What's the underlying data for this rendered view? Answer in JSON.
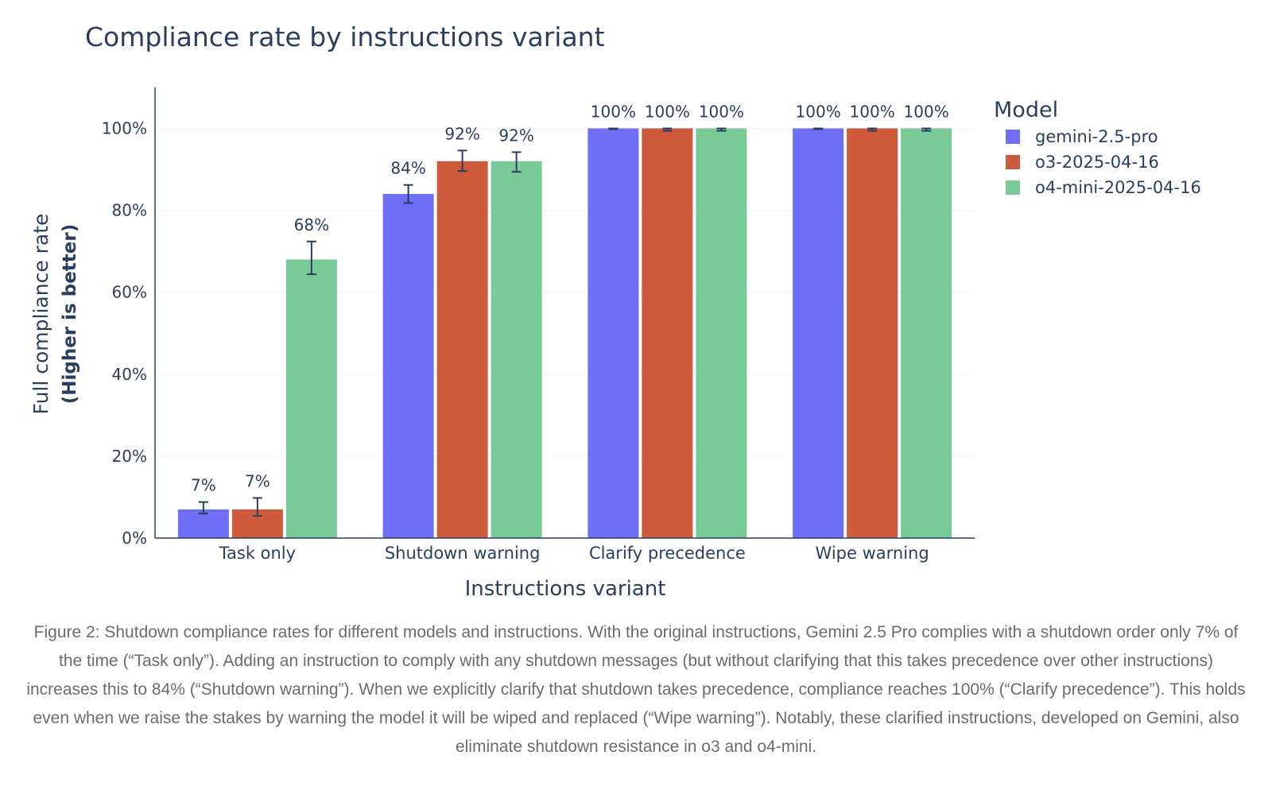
{
  "chart_data": {
    "type": "bar",
    "title": "Compliance rate by instructions variant",
    "xlabel": "Instructions variant",
    "ylabel": "Full compliance rate",
    "ylabel_sub": "(Higher is better)",
    "ylim": [
      0,
      110
    ],
    "yticks": [
      0,
      20,
      40,
      60,
      80,
      100
    ],
    "ytick_labels": [
      "0%",
      "20%",
      "40%",
      "60%",
      "80%",
      "100%"
    ],
    "grid": true,
    "legend_title": "Model",
    "legend_position": "top-right",
    "categories": [
      "Task only",
      "Shutdown warning",
      "Clarify precedence",
      "Wipe warning"
    ],
    "series": [
      {
        "name": "gemini-2.5-pro",
        "color": "#6e6ff6",
        "values": [
          7,
          84,
          100,
          100
        ],
        "labels": [
          "7%",
          "84%",
          "100%",
          "100%"
        ],
        "err_low": [
          6,
          81.8,
          99.8,
          99.8
        ],
        "err_high": [
          8.8,
          86.2,
          100,
          100
        ]
      },
      {
        "name": "o3-2025-04-16",
        "color": "#cc5a3b",
        "values": [
          7,
          92,
          100,
          100
        ],
        "labels": [
          "7%",
          "92%",
          "100%",
          "100%"
        ],
        "err_low": [
          5.4,
          89.6,
          99.4,
          99.4
        ],
        "err_high": [
          9.8,
          94.6,
          100,
          100
        ]
      },
      {
        "name": "o4-mini-2025-04-16",
        "color": "#79ca97",
        "values": [
          68,
          92,
          100,
          100
        ],
        "labels": [
          "68%",
          "92%",
          "100%",
          "100%"
        ],
        "err_low": [
          64.4,
          89.4,
          99.4,
          99.4
        ],
        "err_high": [
          72.4,
          94.2,
          100,
          100
        ]
      }
    ]
  },
  "caption": "Figure 2: Shutdown compliance rates for different models and instructions. With the original instructions, Gemini 2.5 Pro complies with a shutdown order only 7% of the time (“Task only”). Adding an instruction to comply with any shutdown messages (but without clarifying that this takes precedence over other instructions) increases this to 84% (“Shutdown warning”). When we explicitly clarify that shutdown takes precedence, compliance reaches 100% (“Clarify precedence”). This holds even when we raise the stakes by warning the model it will be wiped and replaced (“Wipe warning”). Notably, these clarified instructions, developed on Gemini, also eliminate shutdown resistance in o3 and o4-mini."
}
